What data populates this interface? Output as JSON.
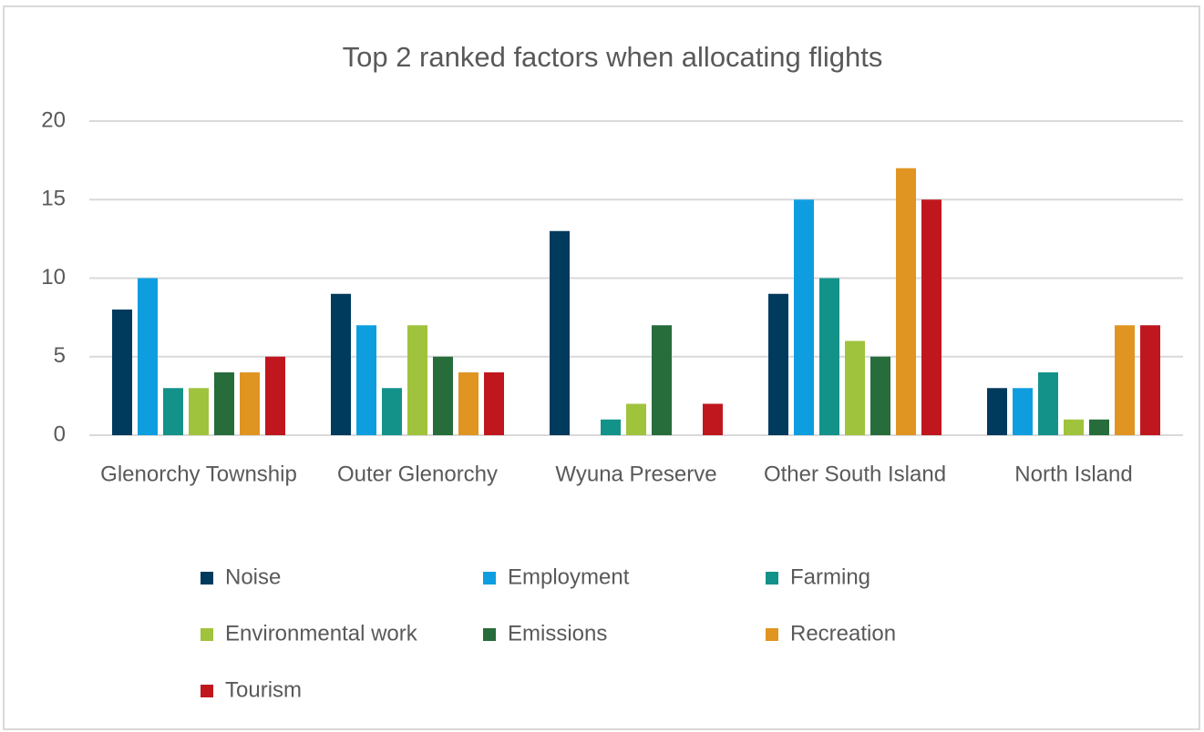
{
  "chart_data": {
    "type": "bar",
    "title": "Top 2 ranked factors when allocating flights",
    "categories": [
      "Glenorchy Township",
      "Outer Glenorchy",
      "Wyuna Preserve",
      "Other South Island",
      "North Island"
    ],
    "series": [
      {
        "name": "Noise",
        "color": "#003a5d",
        "values": [
          8,
          9,
          13,
          9,
          3
        ]
      },
      {
        "name": "Employment",
        "color": "#0e9ee0",
        "values": [
          10,
          7,
          0,
          15,
          3
        ]
      },
      {
        "name": "Farming",
        "color": "#13928a",
        "values": [
          3,
          3,
          1,
          10,
          4
        ]
      },
      {
        "name": "Environmental work",
        "color": "#9fc33c",
        "values": [
          3,
          7,
          2,
          6,
          1
        ]
      },
      {
        "name": "Emissions",
        "color": "#276c3b",
        "values": [
          4,
          5,
          7,
          5,
          1
        ]
      },
      {
        "name": "Recreation",
        "color": "#e09522",
        "values": [
          4,
          4,
          0,
          17,
          7
        ]
      },
      {
        "name": "Tourism",
        "color": "#c0171f",
        "values": [
          5,
          4,
          2,
          15,
          7
        ]
      }
    ],
    "ylim": [
      0,
      20
    ],
    "yticks": [
      0,
      5,
      10,
      15,
      20
    ],
    "grid": true,
    "legend": "bottom"
  }
}
